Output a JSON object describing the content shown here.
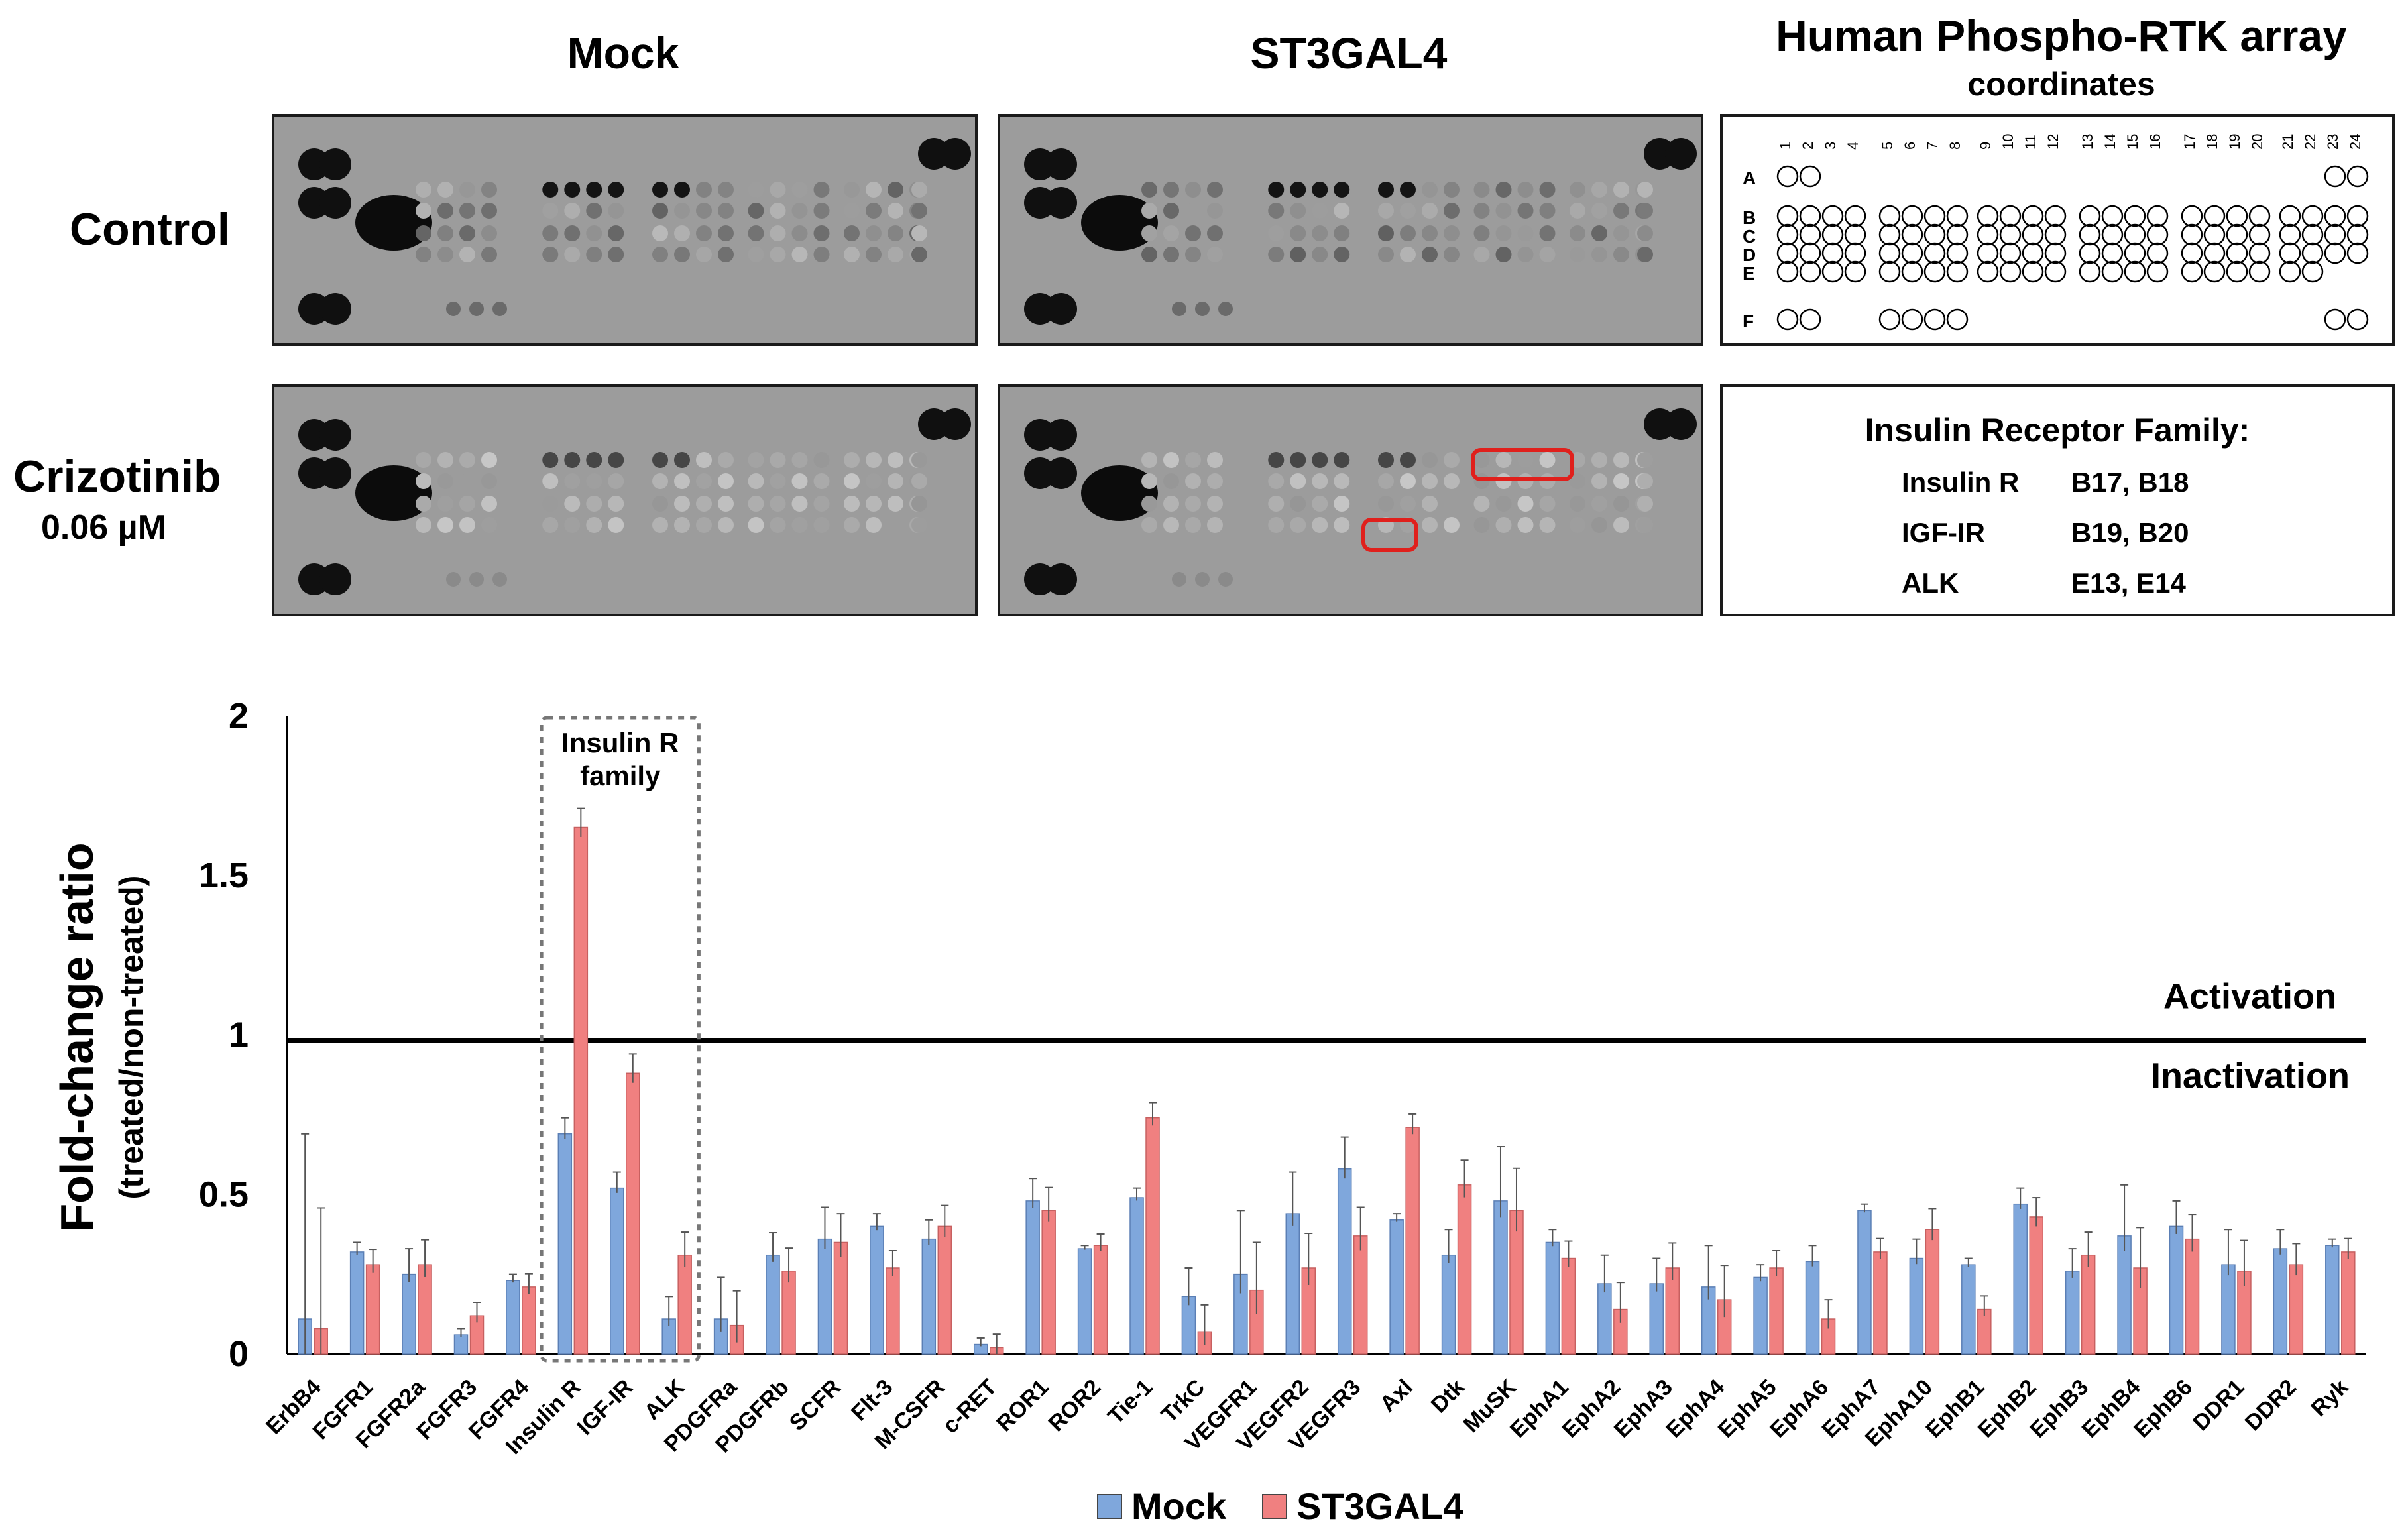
{
  "panel": {
    "col_titles": [
      "Mock",
      "ST3GAL4"
    ],
    "row_labels": {
      "control": "Control",
      "crizotinib_line1": "Crizotinib",
      "crizotinib_line2": "0.06 µM"
    },
    "array_title": "Human Phospho-RTK array",
    "array_subtitle": "coordinates",
    "row_letters": [
      "A",
      "B",
      "C",
      "D",
      "E",
      "F"
    ],
    "col_numbers": [
      "1",
      "2",
      "3",
      "4",
      "5",
      "6",
      "7",
      "8",
      "9",
      "10",
      "11",
      "12",
      "13",
      "14",
      "15",
      "16",
      "17",
      "18",
      "19",
      "20",
      "21",
      "22",
      "23",
      "24"
    ],
    "family": {
      "title": "Insulin Receptor Family:",
      "rows": [
        {
          "name": "Insulin R",
          "coords": "B17, B18"
        },
        {
          "name": "IGF-IR",
          "coords": "B19, B20"
        },
        {
          "name": "ALK",
          "coords": "E13, E14"
        }
      ]
    }
  },
  "colors": {
    "mock": "#7fa7dc",
    "st3gal4": "#f08080",
    "highlight": "#e0201c",
    "blot_bg": "#9c9c9c"
  },
  "chart_data": {
    "type": "bar",
    "ylabel": "Fold-change ratio",
    "ylabel_sub": "(treated/non-treated)",
    "ylim": [
      0,
      2
    ],
    "yticks": [
      "0",
      "0.5",
      "1",
      "1.5",
      "2"
    ],
    "reference_line": 1,
    "annotations": {
      "activation": "Activation",
      "inactivation": "Inactivation",
      "family_box_line1": "Insulin R",
      "family_box_line2": "family"
    },
    "categories": [
      "ErbB4",
      "FGFR1",
      "FGFR2a",
      "FGFR3",
      "FGFR4",
      "Insulin R",
      "IGF-IR",
      "ALK",
      "PDGFRa",
      "PDGFRb",
      "SCFR",
      "Flt-3",
      "M-CSFR",
      "c-RET",
      "ROR1",
      "ROR2",
      "Tie-1",
      "TrkC",
      "VEGFR1",
      "VEGFR2",
      "VEGFR3",
      "Axl",
      "Dtk",
      "MuSK",
      "EphA1",
      "EphA2",
      "EphA3",
      "EphA4",
      "EphA5",
      "EphA6",
      "EphA7",
      "EphA10",
      "EphB1",
      "EphB2",
      "EphB3",
      "EphB4",
      "EphB6",
      "DDR1",
      "DDR2",
      "Ryk"
    ],
    "series": [
      {
        "name": "Mock",
        "values": [
          0.11,
          0.32,
          0.25,
          0.06,
          0.23,
          0.69,
          0.52,
          0.11,
          0.11,
          0.31,
          0.36,
          0.4,
          0.36,
          0.03,
          0.48,
          0.33,
          0.49,
          0.18,
          0.25,
          0.44,
          0.58,
          0.42,
          0.31,
          0.48,
          0.35,
          0.22,
          0.22,
          0.21,
          0.24,
          0.29,
          0.45,
          0.3,
          0.28,
          0.47,
          0.26,
          0.37,
          0.4,
          0.28,
          0.33,
          0.34
        ],
        "errors": [
          0.58,
          0.03,
          0.08,
          0.02,
          0.02,
          0.05,
          0.05,
          0.07,
          0.13,
          0.07,
          0.1,
          0.04,
          0.06,
          0.02,
          0.07,
          0.01,
          0.03,
          0.09,
          0.2,
          0.13,
          0.1,
          0.02,
          0.08,
          0.17,
          0.04,
          0.09,
          0.08,
          0.13,
          0.04,
          0.05,
          0.02,
          0.06,
          0.02,
          0.05,
          0.07,
          0.16,
          0.08,
          0.11,
          0.06,
          0.02
        ]
      },
      {
        "name": "ST3GAL4",
        "values": [
          0.08,
          0.28,
          0.28,
          0.12,
          0.21,
          1.65,
          0.88,
          0.31,
          0.09,
          0.26,
          0.35,
          0.27,
          0.4,
          0.02,
          0.45,
          0.34,
          0.74,
          0.07,
          0.2,
          0.27,
          0.37,
          0.71,
          0.53,
          0.45,
          0.3,
          0.14,
          0.27,
          0.17,
          0.27,
          0.11,
          0.32,
          0.39,
          0.14,
          0.43,
          0.31,
          0.27,
          0.36,
          0.26,
          0.28,
          0.32
        ]
      }
    ]
  },
  "legend": [
    "Mock",
    "ST3GAL4"
  ]
}
